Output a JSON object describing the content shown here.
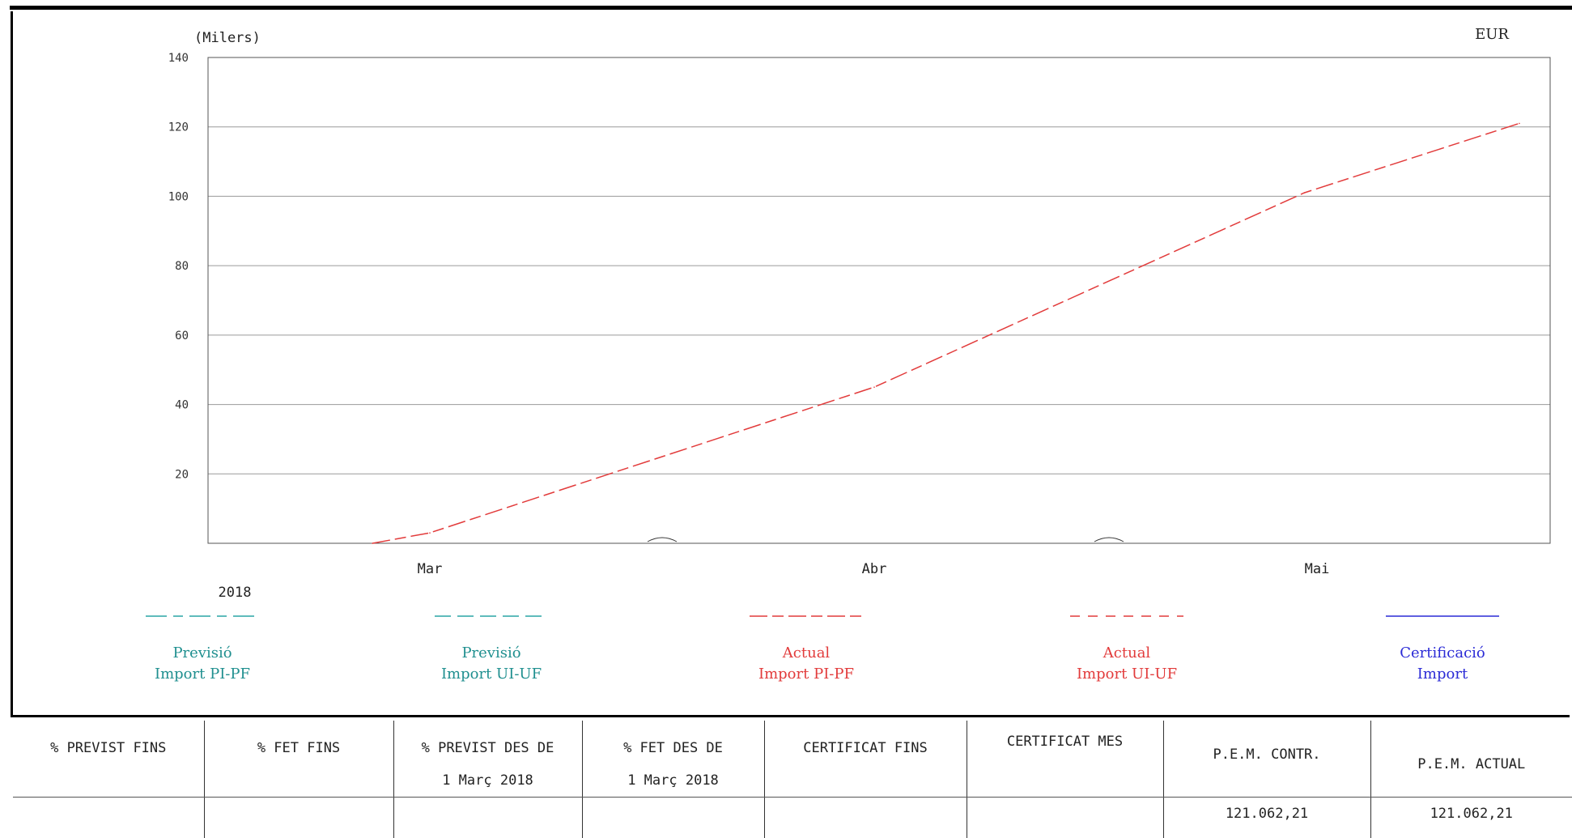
{
  "chart_data": {
    "type": "line",
    "unit_label": "(Milers)",
    "currency": "EUR",
    "year_label": "2018",
    "x_ticks": [
      "Mar",
      "Abr",
      "Mai"
    ],
    "yticks": [
      20,
      40,
      60,
      80,
      100,
      120,
      140
    ],
    "ylim": [
      0,
      140
    ],
    "grid": true,
    "series": [
      {
        "name": "Previsió Import PI-PF",
        "color": "#2aa6a6",
        "dash": "26,8,12,8",
        "points": []
      },
      {
        "name": "Previsió Import UI-UF",
        "color": "#2aa6a6",
        "dash": "20,8",
        "points": []
      },
      {
        "name": "Actual Import PI-PF",
        "color": "#e23b3b",
        "dash": "22,6,14,6",
        "points": [
          {
            "x": "2018-02-25",
            "y": 0
          },
          {
            "x": "2018-03-01",
            "y": 3
          },
          {
            "x": "2018-04-01",
            "y": 45
          },
          {
            "x": "2018-05-01",
            "y": 101
          },
          {
            "x": "2018-05-16",
            "y": 121
          }
        ]
      },
      {
        "name": "Actual Import UI-UF",
        "color": "#e23b3b",
        "dash": "12,10",
        "points": []
      },
      {
        "name": "Certificació Import",
        "color": "#2b2bd6",
        "dash": "",
        "points": []
      }
    ]
  },
  "legend": [
    {
      "line1": "Previsió",
      "line2": "Import PI-PF",
      "color": "#1f8f8f",
      "line_color": "#2aa6a6",
      "dash": "26,8,12,8"
    },
    {
      "line1": "Previsió",
      "line2": "Import UI-UF",
      "color": "#1f8f8f",
      "line_color": "#2aa6a6",
      "dash": "20,8"
    },
    {
      "line1": "Actual",
      "line2": "Import PI-PF",
      "color": "#e23b3b",
      "line_color": "#e23b3b",
      "dash": "22,6,14,6"
    },
    {
      "line1": "Actual",
      "line2": "Import UI-UF",
      "color": "#e23b3b",
      "line_color": "#e23b3b",
      "dash": "12,10"
    },
    {
      "line1": "Certificació",
      "line2": "Import",
      "color": "#2b2bd6",
      "line_color": "#2b2bd6",
      "dash": ""
    }
  ],
  "table": {
    "headers": [
      [
        "% PREVIST FINS",
        ""
      ],
      [
        "% FET FINS",
        ""
      ],
      [
        "% PREVIST DES DE",
        "1 Març 2018"
      ],
      [
        "% FET DES DE",
        "1 Març 2018"
      ],
      [
        "CERTIFICAT FINS",
        ""
      ],
      [
        "CERTIFICAT MES",
        ""
      ],
      [
        "P.E.M. CONTR.",
        ""
      ],
      [
        "P.E.M. ACTUAL",
        ""
      ]
    ],
    "values": [
      "",
      "",
      "",
      "",
      "",
      "",
      "121.062,21",
      "121.062,21"
    ]
  }
}
